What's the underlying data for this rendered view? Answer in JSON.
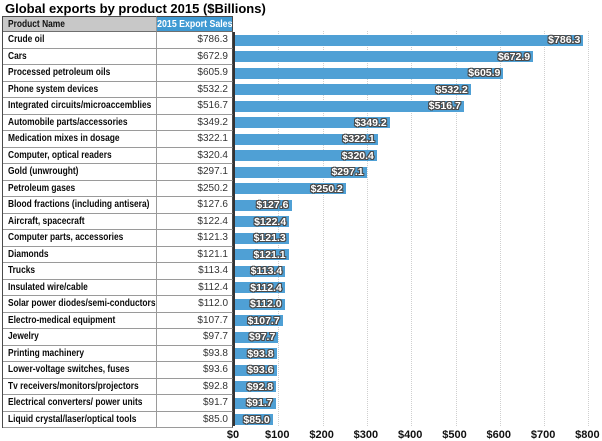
{
  "title": "Global exports by product 2015 ($Billions)",
  "table": {
    "columns": [
      "Product Name",
      "2015 Export Sales"
    ]
  },
  "colors": {
    "bar_fill": "#4fa0d5",
    "sales_header_fill": "#3f9ad3",
    "name_header_fill": "#c8c8c8",
    "gridline": "#cfcfcf",
    "axis_line": "#333333"
  },
  "chart_data": {
    "type": "bar",
    "orientation": "horizontal",
    "title": "Global exports by product 2015 ($Billions)",
    "categories": [
      "Crude oil",
      "Cars",
      "Processed petroleum oils",
      "Phone system devices",
      "Integrated circuits/microaccemblies",
      "Automobile parts/accessories",
      "Medication mixes in dosage",
      "Computer, optical readers",
      "Gold (unwrought)",
      "Petroleum gases",
      "Blood fractions (including antisera)",
      "Aircraft, spacecraft",
      "Computer parts, accessories",
      "Diamonds",
      "Trucks",
      "Insulated wire/cable",
      "Solar power diodes/semi-conductors",
      "Electro-medical equipment",
      "Jewelry",
      "Printing machinery",
      "Lower-voltage switches, fuses",
      "Tv receivers/monitors/projectors",
      "Electrical converters/ power units",
      "Liquid crystal/laser/optical tools"
    ],
    "values": [
      786.3,
      672.9,
      605.9,
      532.2,
      516.7,
      349.2,
      322.1,
      320.4,
      297.1,
      250.2,
      127.6,
      122.4,
      121.3,
      121.1,
      113.4,
      112.4,
      112.0,
      107.7,
      97.7,
      93.8,
      93.6,
      92.8,
      91.7,
      85.0
    ],
    "value_labels": [
      "$786.3",
      "$672.9",
      "$605.9",
      "$532.2",
      "$516.7",
      "$349.2",
      "$322.1",
      "$320.4",
      "$297.1",
      "$250.2",
      "$127.6",
      "$122.4",
      "$121.3",
      "$121.1",
      "$113.4",
      "$112.4",
      "$112.0",
      "$107.7",
      "$97.7",
      "$93.8",
      "$93.6",
      "$92.8",
      "$91.7",
      "$85.0"
    ],
    "xlabel": "",
    "ylabel": "",
    "xlim": [
      0,
      800
    ],
    "x_tick_labels": [
      "$0",
      "$100",
      "$200",
      "$300",
      "$400",
      "$500",
      "$600",
      "$700",
      "$800"
    ],
    "gridlines": "vertical dotted every 100",
    "legend": "none"
  }
}
